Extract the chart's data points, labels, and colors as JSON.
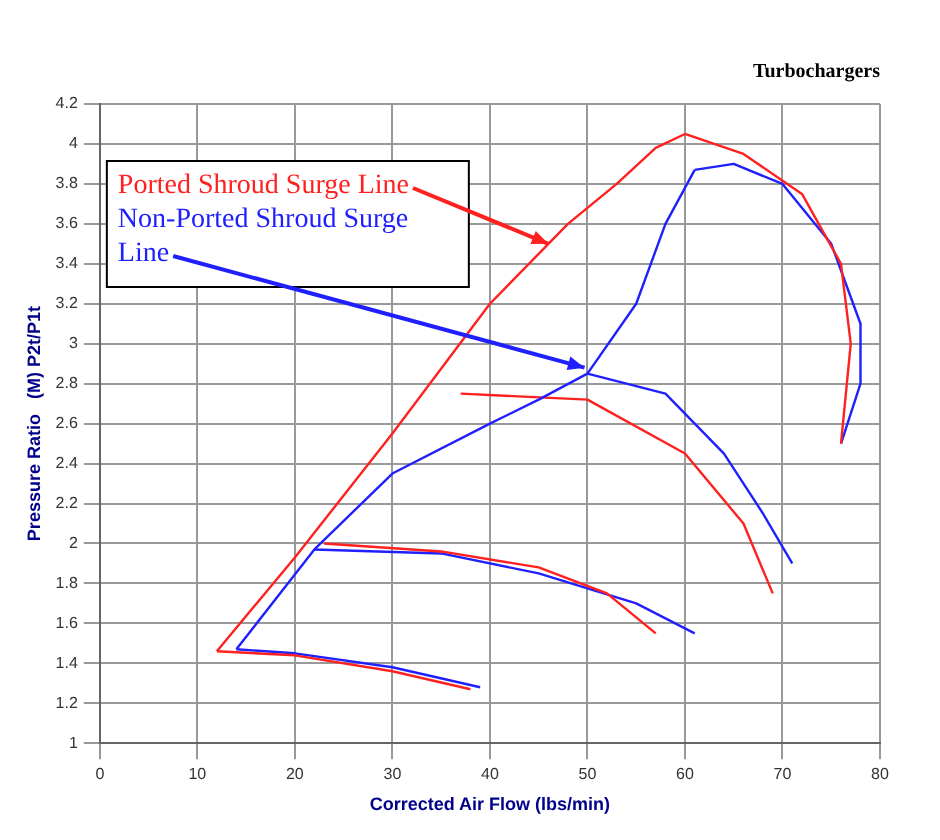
{
  "chart_data": {
    "type": "line",
    "title": "Turbochargers",
    "xlabel": "Corrected Air Flow (lbs/min)",
    "ylabel": "Pressure Ratio   (M) P2t/P1t",
    "xlim": [
      0,
      80
    ],
    "xticks": [
      0,
      10,
      20,
      30,
      40,
      50,
      60,
      70,
      80
    ],
    "ylim": [
      1,
      4.2
    ],
    "yticks": [
      1,
      1.2,
      1.4,
      1.6,
      1.8,
      2,
      2.2,
      2.4,
      2.6,
      2.8,
      3,
      3.2,
      3.4,
      3.6,
      3.8,
      4,
      4.2
    ],
    "grid": true,
    "marker": "none",
    "line_style": "solid",
    "legend": false,
    "annotations": [
      {
        "text": "Ported Shroud Surge Line",
        "x": 46,
        "y": 3.5
      },
      {
        "text": "Non-Ported Shroud Surge Line",
        "x": 49.7,
        "y": 2.88
      }
    ],
    "series": [
      {
        "color": "#ff2020",
        "x": [
          12,
          20,
          30,
          40,
          48,
          53,
          57,
          60
        ],
        "values": [
          1.46,
          1.93,
          2.55,
          3.2,
          3.6,
          3.8,
          3.98,
          4.05
        ]
      },
      {
        "color": "#2020ff",
        "x": [
          14,
          22,
          30,
          40,
          45,
          50,
          55,
          58,
          61
        ],
        "values": [
          1.47,
          1.97,
          2.35,
          2.6,
          2.72,
          2.85,
          3.2,
          3.6,
          3.87
        ]
      },
      {
        "color": "#ff2020",
        "x": [
          12,
          20,
          30,
          38
        ],
        "values": [
          1.46,
          1.44,
          1.36,
          1.27
        ]
      },
      {
        "color": "#ff2020",
        "x": [
          23,
          35,
          45,
          52,
          57
        ],
        "values": [
          2.0,
          1.96,
          1.88,
          1.75,
          1.55
        ]
      },
      {
        "color": "#ff2020",
        "x": [
          37,
          50,
          60,
          66,
          69
        ],
        "values": [
          2.75,
          2.72,
          2.45,
          2.1,
          1.75
        ]
      },
      {
        "color": "#ff2020",
        "x": [
          60,
          66,
          72,
          76,
          77,
          76
        ],
        "values": [
          4.05,
          3.95,
          3.75,
          3.4,
          3.0,
          2.5
        ]
      },
      {
        "color": "#2020ff",
        "x": [
          14,
          20,
          30,
          39
        ],
        "values": [
          1.47,
          1.45,
          1.38,
          1.28
        ]
      },
      {
        "color": "#2020ff",
        "x": [
          22,
          35,
          45,
          55,
          61
        ],
        "values": [
          1.97,
          1.95,
          1.85,
          1.7,
          1.55
        ]
      },
      {
        "color": "#2020ff",
        "x": [
          50,
          58,
          64,
          68,
          71
        ],
        "values": [
          2.85,
          2.75,
          2.45,
          2.15,
          1.9
        ]
      },
      {
        "color": "#2020ff",
        "x": [
          61,
          65,
          70,
          75,
          78,
          78,
          76
        ],
        "values": [
          3.87,
          3.9,
          3.8,
          3.5,
          3.1,
          2.8,
          2.5
        ]
      }
    ]
  }
}
